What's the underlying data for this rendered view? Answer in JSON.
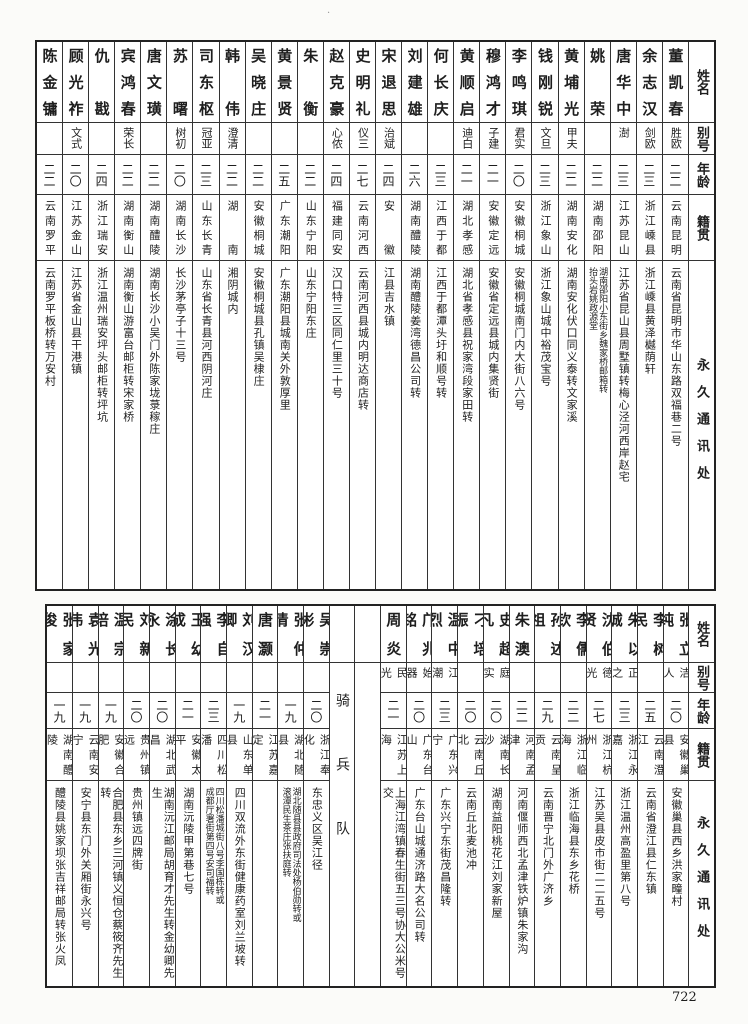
{
  "headers": {
    "name": "姓名",
    "alias": "别号",
    "age": "年龄",
    "native": "籍贯",
    "address": "永久通讯处"
  },
  "top_entries": [
    {
      "name": "董凯春",
      "alias": "胜欧",
      "age": "二二",
      "native": "云南昆明",
      "address": [
        "云南省昆明市华山东路双福巷二号"
      ]
    },
    {
      "name": "余志汉",
      "alias": "剑欧",
      "age": "二三",
      "native": "浙江嵊县",
      "address": [
        "浙江嵊县黄泽樾荫轩"
      ]
    },
    {
      "name": "唐华中",
      "alias": "澍",
      "age": "二三",
      "native": "江苏昆山",
      "address": [
        "江苏省昆山县周墅镇转梅心泾河西岸赵宅"
      ]
    },
    {
      "name": "姚荣",
      "alias": "",
      "age": "二二",
      "native": "湖南邵阳",
      "address": [
        "湖南邵阳小东街乡魏家桥邮箱转",
        "抬头岩姚政源堂"
      ]
    },
    {
      "name": "黄埔光",
      "alias": "甲夫",
      "age": "二二",
      "native": "湖南安化",
      "address": [
        "湖南安化伏口同义泰转文家溪"
      ]
    },
    {
      "name": "钱刚锐",
      "alias": "文旦",
      "age": "二三",
      "native": "浙江象山",
      "address": [
        "浙江象山城中裕茂宝号"
      ]
    },
    {
      "name": "李鸣琪",
      "alias": "君实",
      "age": "二〇",
      "native": "安徽桐城",
      "address": [
        "安徽桐城南门内大街八六号"
      ]
    },
    {
      "name": "穆鸿才",
      "alias": "子建",
      "age": "二一",
      "native": "安徽定远",
      "address": [
        "安徽省定远县城内集贤街"
      ]
    },
    {
      "name": "黄顺启",
      "alias": "迪白",
      "age": "二一",
      "native": "湖北孝感",
      "address": [
        "湖北省孝感县祝家湾段家田转"
      ]
    },
    {
      "name": "何长庆",
      "alias": "",
      "age": "二三",
      "native": "江西于都",
      "address": [
        "江西于都潭头圩和顺号转"
      ]
    },
    {
      "name": "刘建雄",
      "alias": "",
      "age": "二六",
      "native": "湖南醴陵",
      "address": [
        "湖南醴陵姜湾德昌公司转"
      ]
    },
    {
      "name": "宋退思",
      "alias": "治斌",
      "age": "二四",
      "native": "安徽",
      "address": [
        "江县吉水镇"
      ]
    },
    {
      "name": "史明礼",
      "alias": "仪三",
      "age": "二七",
      "native": "云南河西",
      "address": [
        "云南河西县城内明达商店转"
      ]
    },
    {
      "name": "赵克豪",
      "alias": "心侬",
      "age": "二四",
      "native": "福建同安",
      "address": [
        "汉口特三区同仁里三十号"
      ]
    },
    {
      "name": "朱衡",
      "alias": "",
      "age": "二二",
      "native": "山东宁阳",
      "address": [
        "山东宁阳东庄"
      ]
    },
    {
      "name": "黄景贤",
      "alias": "",
      "age": "二五",
      "native": "广东潮阳",
      "address": [
        "广东潮阳县城南关外敦厚里"
      ]
    },
    {
      "name": "吴晓庄",
      "alias": "",
      "age": "二二",
      "native": "安徽桐城",
      "address": [
        "安徽桐城县孔镇吴棣庄"
      ]
    },
    {
      "name": "韩伟",
      "alias": "澄清",
      "age": "二二",
      "native": "湖南",
      "address": [
        "湘阴城内"
      ]
    },
    {
      "name": "司东枢",
      "alias": "冠亚",
      "age": "二三",
      "native": "山东长青",
      "address": [
        "山东省长青县河西阴河庄"
      ]
    },
    {
      "name": "苏曙",
      "alias": "树初",
      "age": "二〇",
      "native": "湖南长沙",
      "address": [
        "长沙茅亭子十三号"
      ]
    },
    {
      "name": "唐文璜",
      "alias": "",
      "age": "二二",
      "native": "湖南醴陵",
      "address": [
        "湖南长沙小吴门外陈家垅菉稼庄"
      ]
    },
    {
      "name": "宾鸿春",
      "alias": "荣长",
      "age": "二二",
      "native": "湖南衡山",
      "address": [
        "湖南衡山游富台邮柜转宋家桥"
      ]
    },
    {
      "name": "仇戡",
      "alias": "",
      "age": "二四",
      "native": "浙江瑞安",
      "address": [
        "浙江温州瑞安坪头邮柜转坪坑"
      ]
    },
    {
      "name": "顾光祚",
      "alias": "文式",
      "age": "二〇",
      "native": "江苏金山",
      "address": [
        "江苏省金山县干港镇"
      ]
    },
    {
      "name": "陈金镛",
      "alias": "",
      "age": "二二",
      "native": "云南罗平",
      "address": [
        "云南罗平板桥转万安村"
      ]
    }
  ],
  "bottom_entries_right": [
    {
      "name": "张立纯",
      "alias": "洁人",
      "age": "二〇",
      "native": "安徽巢县",
      "address": [
        "安徽巢县西乡洪家疃村"
      ]
    },
    {
      "name": "李树民",
      "alias": "",
      "age": "二五",
      "native": "云南澄江",
      "address": [
        "云南省澄江县仁东镇"
      ]
    },
    {
      "name": "朱以诚",
      "alias": "正之",
      "age": "二三",
      "native": "浙江永嘉",
      "address": [
        "浙江温州高盈里第八号"
      ]
    },
    {
      "name": "沈伯贤",
      "alias": "德光",
      "age": "二七",
      "native": "浙江杭州",
      "address": [
        "江苏吴县皮市街二二五号"
      ]
    },
    {
      "name": "李儒钦",
      "alias": "",
      "age": "二二",
      "native": "浙江临海",
      "address": [
        "浙江临海县东乡花桥"
      ]
    },
    {
      "name": "孙述祖",
      "alias": "",
      "age": "二九",
      "native": "云南呈贡",
      "address": [
        "云南晋宁北门外广济乡"
      ]
    },
    {
      "name": "朱澳",
      "alias": "",
      "age": "二二",
      "native": "河南孟津",
      "address": [
        "河南偃师西北孟津铁炉镇朱家沟"
      ]
    },
    {
      "name": "史超凡",
      "alias": "庭实",
      "age": "二〇",
      "native": "湖南长沙",
      "address": [
        "湖南益阳桃花江刘家新屋"
      ]
    },
    {
      "name": "刁培振",
      "alias": "",
      "age": "二〇",
      "native": "云南丘北",
      "address": [
        "云南丘北麦池冲"
      ]
    },
    {
      "name": "温中烈",
      "alias": "江潮",
      "age": "二三",
      "native": "广东兴宁",
      "address": [
        "广东兴宁东街茂昌隆转"
      ]
    },
    {
      "name": "邝兆铭",
      "alias": "始器",
      "age": "二〇",
      "native": "广东台山",
      "address": [
        "广东台山城通济路大名公司转"
      ]
    },
    {
      "name": "周炎",
      "alias": "民光",
      "age": "二一",
      "native": "江苏上海",
      "address": [
        "上海江湾镇春生街五三号协大公米号交"
      ]
    }
  ],
  "section_label": "骑兵队",
  "bottom_entries_left": [
    {
      "name": "吴崇彬",
      "alias": "",
      "age": "二〇",
      "native": "浙江奉化",
      "address": [
        "东忠义区吴江径"
      ]
    },
    {
      "name": "张仲清",
      "alias": "",
      "age": "一九",
      "native": "湖北随县",
      "address": [
        "湖北随县县政府司法处杨伯勋转或",
        "滚潭民生茶庄张扶庭转"
      ]
    },
    {
      "name": "唐灏",
      "alias": "",
      "age": "二一",
      "native": "江苏嘉定",
      "address": [
        ""
      ]
    },
    {
      "name": "刘汉卿",
      "alias": "",
      "age": "一九",
      "native": "山东单县",
      "address": [
        "四川双流外东街健康药室刘兰坡转"
      ]
    },
    {
      "name": "李自强",
      "alias": "",
      "age": "二三",
      "native": "四川松潘",
      "address": [
        "四川松潘城街八号李国栋转或",
        "成都厅署街第四号安司福转"
      ]
    },
    {
      "name": "王幼成",
      "alias": "",
      "age": "二一",
      "native": "安徽太平",
      "address": [
        "湖南沅陵甲第巷七号"
      ]
    },
    {
      "name": "涂长永",
      "alias": "",
      "age": "二〇",
      "native": "湖北武昌",
      "address": [
        "湖南沅江邮局胡育才先生转金幼卿先生"
      ]
    },
    {
      "name": "刘新民",
      "alias": "",
      "age": "二〇",
      "native": "贵州镇远",
      "address": [
        "贵州镇远四牌街"
      ]
    },
    {
      "name": "温宗培",
      "alias": "",
      "age": "一九",
      "native": "安徽合肥",
      "address": [
        "合肥县东乡三河镇义恒仓蔡筱齐先生转"
      ]
    },
    {
      "name": "袁光伟",
      "alias": "",
      "age": "一九",
      "native": "云南安宁",
      "address": [
        "安宁县东门外关厢街永兴号"
      ]
    },
    {
      "name": "张家俊",
      "alias": "",
      "age": "一九",
      "native": "湖南醴陵",
      "address": [
        "醴陵县姚家坝张吉祥邮局转张火凤"
      ]
    }
  ],
  "page_number": "722"
}
